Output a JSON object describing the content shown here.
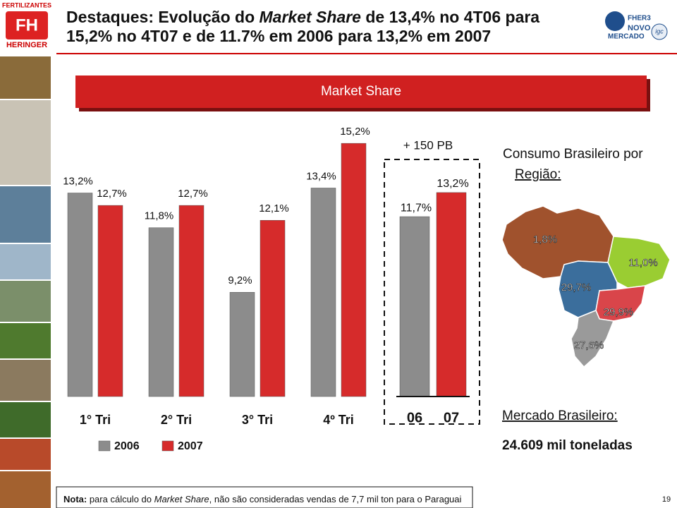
{
  "header": {
    "logo_top": "FERTILIZANTES",
    "logo_bottom": "HERINGER",
    "title": [
      "Destaques: Evolução do ",
      "Market Share",
      " de 13,4% no 4T06 para",
      "15,2% no 4T07 e de 11.7% em 2006 para 13,2% em 2007"
    ],
    "right_logo": [
      "FHER3",
      "NOVO",
      "MERCADO",
      "igc"
    ]
  },
  "chart_data": [
    {
      "type": "bar",
      "title": "Market Share",
      "categories": [
        "1° Tri",
        "2° Tri",
        "3° Tri",
        "4º Tri"
      ],
      "series": [
        {
          "name": "2006",
          "color": "#8c8c8c",
          "values": [
            13.2,
            11.8,
            9.2,
            13.4
          ],
          "value_labels": [
            "13,2%",
            "11,8%",
            "9,2%",
            "13,4%"
          ]
        },
        {
          "name": "2007",
          "color": "#d62b2b",
          "values": [
            12.7,
            12.7,
            12.1,
            15.2
          ],
          "value_labels": [
            "12,7%",
            "12,7%",
            "12,1%",
            "15,2%"
          ]
        }
      ],
      "ylim": [
        5,
        16
      ]
    },
    {
      "type": "bar",
      "annotation": "+ 150 PB",
      "categories": [
        "06",
        "07"
      ],
      "values": [
        11.7,
        13.2
      ],
      "value_labels": [
        "11,7%",
        "13,2%"
      ],
      "colors": [
        "#8c8c8c",
        "#d62b2b"
      ],
      "ylim": [
        0.5,
        17.5
      ]
    },
    {
      "type": "map",
      "title": [
        "Consumo Brasileiro por",
        "Região:"
      ],
      "values": [
        1.8,
        11.0,
        29.7,
        29.9,
        27.6
      ],
      "value_labels": [
        "1,8%",
        "11,0%",
        "29,7%",
        "29,9%",
        "27,6%"
      ],
      "colors": [
        "#a0522d",
        "#9acd32",
        "#3b6e9c",
        "#d9454a",
        "#9a9a9a"
      ]
    }
  ],
  "market": {
    "label": "Mercado Brasileiro:",
    "total": "24.609 mil toneladas"
  },
  "footnote": [
    "Nota:",
    " para cálculo do ",
    "Market Share",
    ", não são consideradas vendas de 7,7 mil ton para o Paraguai"
  ],
  "page_number": 19
}
